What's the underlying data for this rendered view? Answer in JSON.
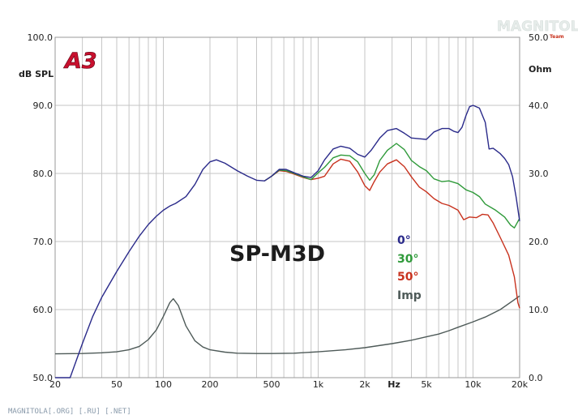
{
  "chart_data": {
    "type": "line",
    "title": "SP-M3D",
    "logo": "A3",
    "watermark_top": "MAGNITOLA",
    "watermark_top_small": "Team",
    "watermark_bottom": "MAGNITOLA[.ORG] [.RU] [.NET]",
    "xlabel": "Hz",
    "ylabel_left": "dB SPL",
    "ylabel_right": "Ohm",
    "x_scale": "log",
    "xlim": [
      20,
      20000
    ],
    "ylim_left": [
      50,
      100
    ],
    "ylim_right": [
      0,
      50
    ],
    "grid": true,
    "x_ticks": [
      {
        "v": 20,
        "label": "20"
      },
      {
        "v": 50,
        "label": "50"
      },
      {
        "v": 100,
        "label": "100"
      },
      {
        "v": 200,
        "label": "200"
      },
      {
        "v": 500,
        "label": "500"
      },
      {
        "v": 1000,
        "label": "1k"
      },
      {
        "v": 2000,
        "label": "2k"
      },
      {
        "v": 5000,
        "label": "5k"
      },
      {
        "v": 10000,
        "label": "10k"
      },
      {
        "v": 20000,
        "label": "20k"
      }
    ],
    "y_ticks_left": [
      "50.0",
      "60.0",
      "70.0",
      "80.0",
      "90.0",
      "100.0"
    ],
    "y_ticks_right": [
      "0.0",
      "10.0",
      "20.0",
      "30.0",
      "40.0",
      "50.0"
    ],
    "legend_placement": "center-right",
    "colors": {
      "s0": "#2a2a8a",
      "s30": "#2f9a3a",
      "s50": "#c8321e",
      "imp": "#4e5a58",
      "grid": "#c6c6c6",
      "logo": "#c8102e"
    },
    "series": [
      {
        "name": "0°",
        "axis": "left",
        "color": "#2a2a8a",
        "points": [
          [
            20,
            46
          ],
          [
            25,
            49
          ],
          [
            30,
            55
          ],
          [
            35,
            59
          ],
          [
            40,
            61.8
          ],
          [
            50,
            65.6
          ],
          [
            60,
            68.5
          ],
          [
            70,
            70.8
          ],
          [
            80,
            72.5
          ],
          [
            90,
            73.7
          ],
          [
            100,
            74.6
          ],
          [
            110,
            75.2
          ],
          [
            120,
            75.6
          ],
          [
            140,
            76.6
          ],
          [
            160,
            78.4
          ],
          [
            180,
            80.6
          ],
          [
            200,
            81.7
          ],
          [
            220,
            82.0
          ],
          [
            250,
            81.5
          ],
          [
            300,
            80.4
          ],
          [
            350,
            79.6
          ],
          [
            400,
            79.0
          ],
          [
            450,
            78.9
          ],
          [
            500,
            79.6
          ],
          [
            560,
            80.6
          ],
          [
            620,
            80.6
          ],
          [
            700,
            80.1
          ],
          [
            800,
            79.6
          ],
          [
            900,
            79.4
          ],
          [
            1000,
            80.4
          ],
          [
            1100,
            82.0
          ],
          [
            1250,
            83.6
          ],
          [
            1400,
            84.0
          ],
          [
            1600,
            83.7
          ],
          [
            1800,
            82.8
          ],
          [
            2000,
            82.4
          ],
          [
            2200,
            83.4
          ],
          [
            2500,
            85.2
          ],
          [
            2800,
            86.3
          ],
          [
            3200,
            86.6
          ],
          [
            3600,
            85.9
          ],
          [
            4000,
            85.2
          ],
          [
            4500,
            85.1
          ],
          [
            5000,
            85.0
          ],
          [
            5600,
            86.1
          ],
          [
            6300,
            86.6
          ],
          [
            7000,
            86.6
          ],
          [
            7500,
            86.2
          ],
          [
            8000,
            86.0
          ],
          [
            8500,
            86.8
          ],
          [
            9000,
            88.5
          ],
          [
            9500,
            89.8
          ],
          [
            10000,
            90.0
          ],
          [
            11000,
            89.6
          ],
          [
            12000,
            87.5
          ],
          [
            12700,
            83.6
          ],
          [
            13500,
            83.7
          ],
          [
            15000,
            82.9
          ],
          [
            16000,
            82.2
          ],
          [
            17000,
            81.3
          ],
          [
            18000,
            79.5
          ],
          [
            19000,
            76.5
          ],
          [
            20000,
            73.0
          ]
        ]
      },
      {
        "name": "30°",
        "axis": "left",
        "color": "#2f9a3a",
        "points": [
          [
            450,
            78.9
          ],
          [
            500,
            79.6
          ],
          [
            560,
            80.5
          ],
          [
            620,
            80.4
          ],
          [
            700,
            80.0
          ],
          [
            800,
            79.5
          ],
          [
            900,
            79.1
          ],
          [
            1000,
            80.1
          ],
          [
            1100,
            80.9
          ],
          [
            1250,
            82.3
          ],
          [
            1400,
            82.7
          ],
          [
            1600,
            82.6
          ],
          [
            1800,
            81.7
          ],
          [
            2000,
            80.0
          ],
          [
            2150,
            79.0
          ],
          [
            2300,
            79.8
          ],
          [
            2500,
            81.9
          ],
          [
            2800,
            83.4
          ],
          [
            3200,
            84.4
          ],
          [
            3600,
            83.5
          ],
          [
            4000,
            81.9
          ],
          [
            4500,
            81.0
          ],
          [
            5000,
            80.4
          ],
          [
            5600,
            79.2
          ],
          [
            6300,
            78.8
          ],
          [
            7000,
            78.9
          ],
          [
            8000,
            78.5
          ],
          [
            9000,
            77.6
          ],
          [
            10000,
            77.2
          ],
          [
            11000,
            76.6
          ],
          [
            12000,
            75.5
          ],
          [
            14000,
            74.6
          ],
          [
            16000,
            73.6
          ],
          [
            17500,
            72.4
          ],
          [
            18500,
            72.0
          ],
          [
            20000,
            73.4
          ]
        ]
      },
      {
        "name": "50°",
        "axis": "left",
        "color": "#c8321e",
        "points": [
          [
            450,
            78.9
          ],
          [
            500,
            79.6
          ],
          [
            560,
            80.4
          ],
          [
            620,
            80.3
          ],
          [
            700,
            79.9
          ],
          [
            800,
            79.4
          ],
          [
            900,
            79.1
          ],
          [
            1000,
            79.3
          ],
          [
            1100,
            79.6
          ],
          [
            1250,
            81.4
          ],
          [
            1400,
            82.1
          ],
          [
            1600,
            81.8
          ],
          [
            1800,
            80.2
          ],
          [
            2000,
            78.2
          ],
          [
            2150,
            77.5
          ],
          [
            2300,
            78.8
          ],
          [
            2500,
            80.2
          ],
          [
            2800,
            81.4
          ],
          [
            3200,
            82.0
          ],
          [
            3600,
            81.0
          ],
          [
            4000,
            79.5
          ],
          [
            4500,
            78.0
          ],
          [
            5000,
            77.3
          ],
          [
            5600,
            76.3
          ],
          [
            6300,
            75.6
          ],
          [
            7000,
            75.3
          ],
          [
            8000,
            74.6
          ],
          [
            8700,
            73.2
          ],
          [
            9500,
            73.6
          ],
          [
            10500,
            73.5
          ],
          [
            11500,
            74.0
          ],
          [
            12500,
            73.9
          ],
          [
            13500,
            72.7
          ],
          [
            15000,
            70.6
          ],
          [
            17000,
            68.0
          ],
          [
            18500,
            64.8
          ],
          [
            19500,
            61.0
          ],
          [
            20000,
            60.2
          ]
        ]
      },
      {
        "name": "Imp",
        "axis": "right",
        "color": "#4e5a58",
        "points": [
          [
            20,
            3.5
          ],
          [
            30,
            3.55
          ],
          [
            40,
            3.65
          ],
          [
            50,
            3.8
          ],
          [
            60,
            4.1
          ],
          [
            70,
            4.6
          ],
          [
            80,
            5.6
          ],
          [
            90,
            7.0
          ],
          [
            100,
            9.0
          ],
          [
            110,
            11.0
          ],
          [
            116,
            11.6
          ],
          [
            125,
            10.6
          ],
          [
            140,
            7.6
          ],
          [
            160,
            5.4
          ],
          [
            180,
            4.5
          ],
          [
            200,
            4.1
          ],
          [
            250,
            3.75
          ],
          [
            300,
            3.6
          ],
          [
            400,
            3.55
          ],
          [
            500,
            3.55
          ],
          [
            700,
            3.6
          ],
          [
            1000,
            3.8
          ],
          [
            1500,
            4.1
          ],
          [
            2000,
            4.4
          ],
          [
            3000,
            5.0
          ],
          [
            4000,
            5.5
          ],
          [
            5000,
            6.0
          ],
          [
            6000,
            6.4
          ],
          [
            7000,
            6.9
          ],
          [
            8000,
            7.4
          ],
          [
            10000,
            8.2
          ],
          [
            12000,
            8.9
          ],
          [
            15000,
            10.0
          ],
          [
            20000,
            12.0
          ]
        ]
      }
    ]
  }
}
